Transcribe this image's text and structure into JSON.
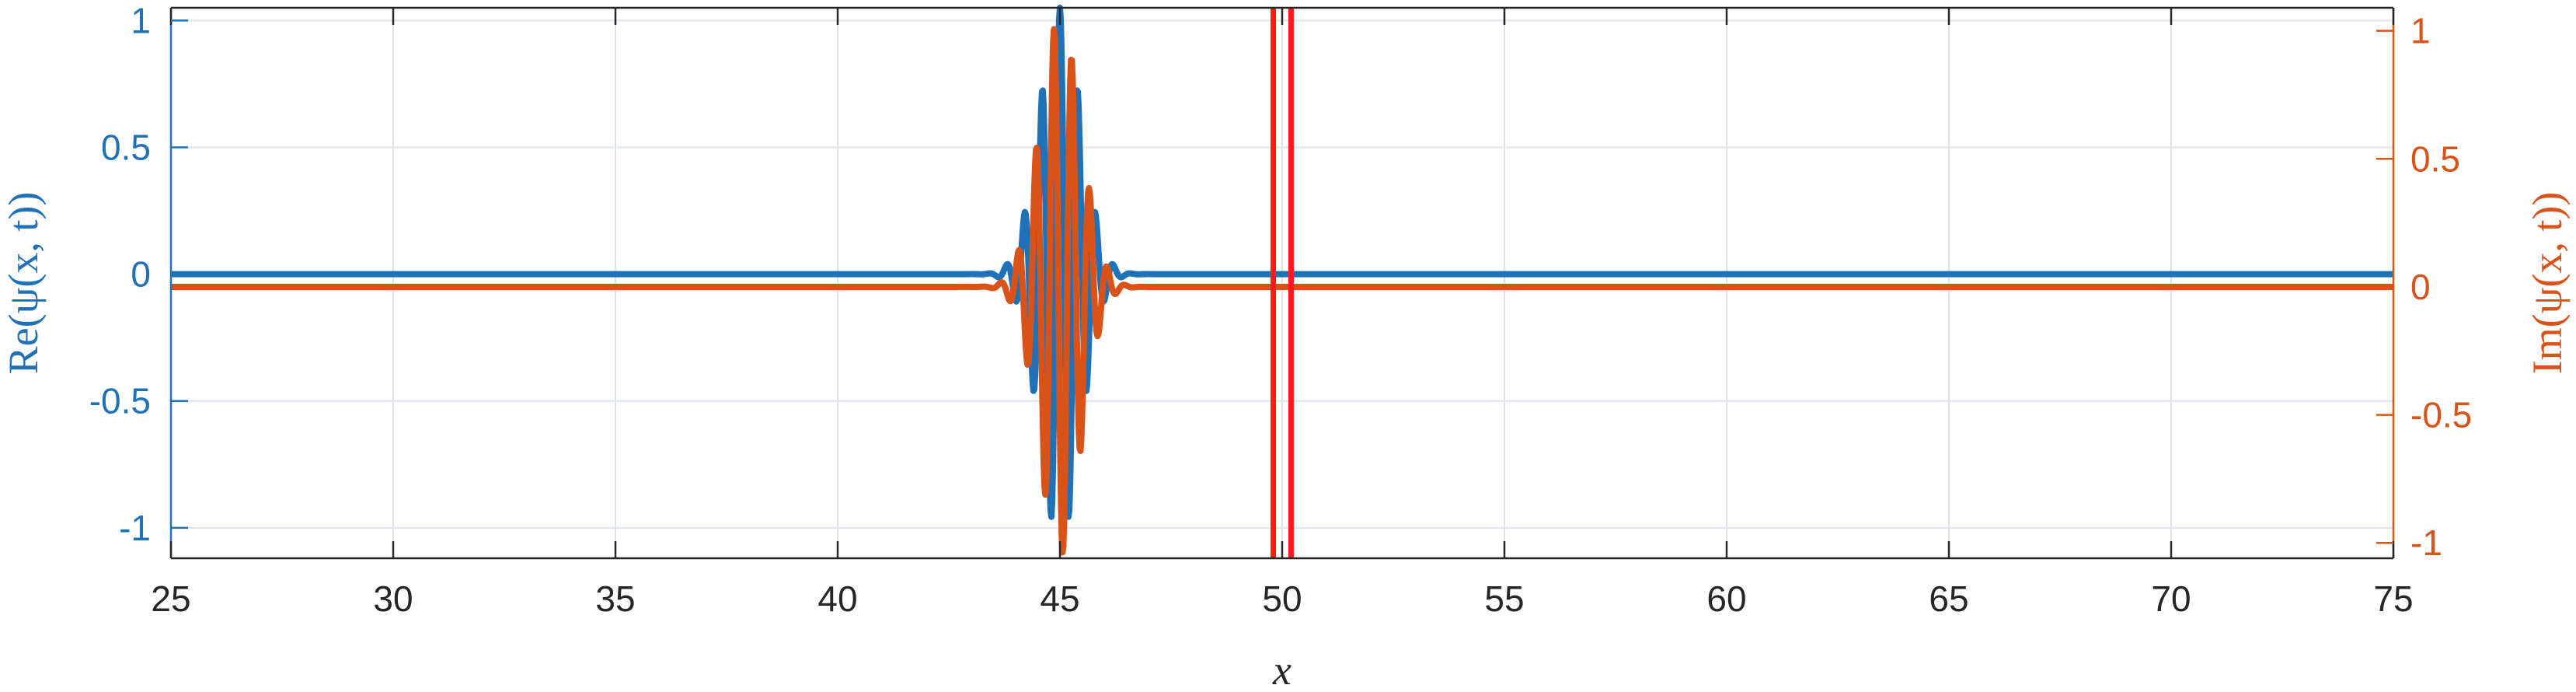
{
  "chart_data": {
    "type": "line",
    "xlabel": "x",
    "ylabel_left": "Re(ψ(x, t))",
    "ylabel_right": "Im(ψ(x, t))",
    "xlim": [
      25,
      75
    ],
    "ylim_left": [
      -1.12,
      1.05
    ],
    "ylim_right": [
      -1.06,
      1.09
    ],
    "x_ticks": [
      25,
      30,
      35,
      40,
      45,
      50,
      55,
      60,
      65,
      70,
      75
    ],
    "x_tick_labels": [
      "25",
      "30",
      "35",
      "40",
      "45",
      "50",
      "55",
      "60",
      "65",
      "70",
      "75"
    ],
    "y_left_ticks": [
      -1,
      -0.5,
      0,
      0.5,
      1
    ],
    "y_left_tick_labels": [
      "-1",
      "-0.5",
      "0",
      "0.5",
      "1"
    ],
    "y_right_ticks": [
      -1,
      -0.5,
      0,
      0.5,
      1
    ],
    "y_right_tick_labels": [
      "-1",
      "-0.5",
      "0",
      "0.5",
      "1"
    ],
    "grid": true,
    "colors": {
      "real": "#1f72b8",
      "imag": "#d95319",
      "barrier": "#ff1a1a",
      "grid": "#dfe3ea",
      "axis": "#262626"
    },
    "wave_packet": {
      "center": 45.0,
      "width": 0.72,
      "wavenumber": 2.5,
      "real_amplitude": 1.05,
      "imag_amplitude": 1.05
    },
    "series": [
      {
        "axis": "left",
        "color": "#1f72b8",
        "x": [
          25,
          43.0,
          43.2,
          43.4,
          43.6,
          43.8,
          44.0,
          44.2,
          44.4,
          44.6,
          44.8,
          45.0,
          45.2,
          45.4,
          45.6,
          45.8,
          46.0,
          46.2,
          46.4,
          46.6,
          46.8,
          47.0,
          75
        ],
        "y": [
          0,
          0,
          0.0,
          0.01,
          0.0,
          -0.05,
          0.13,
          0.25,
          -0.25,
          -0.74,
          -0.26,
          1.05,
          0.62,
          -0.74,
          -0.52,
          0.25,
          0.12,
          -0.05,
          0.0,
          0.01,
          0,
          0,
          0
        ]
      },
      {
        "axis": "right",
        "color": "#d95319",
        "x": [
          25,
          43.0,
          43.2,
          43.4,
          43.6,
          43.8,
          44.0,
          44.2,
          44.4,
          44.6,
          44.8,
          45.0,
          45.2,
          45.4,
          45.6,
          45.8,
          46.0,
          46.2,
          46.4,
          46.6,
          46.8,
          47.0,
          75
        ],
        "y": [
          0,
          0,
          0.0,
          -0.03,
          -0.1,
          -0.18,
          0.12,
          0.45,
          -0.07,
          -0.9,
          -0.98,
          0.24,
          0.94,
          0.32,
          -0.5,
          -0.4,
          0.1,
          0.1,
          -0.02,
          -0.01,
          0,
          0,
          0
        ]
      }
    ],
    "barriers": [
      49.8,
      50.2
    ]
  }
}
